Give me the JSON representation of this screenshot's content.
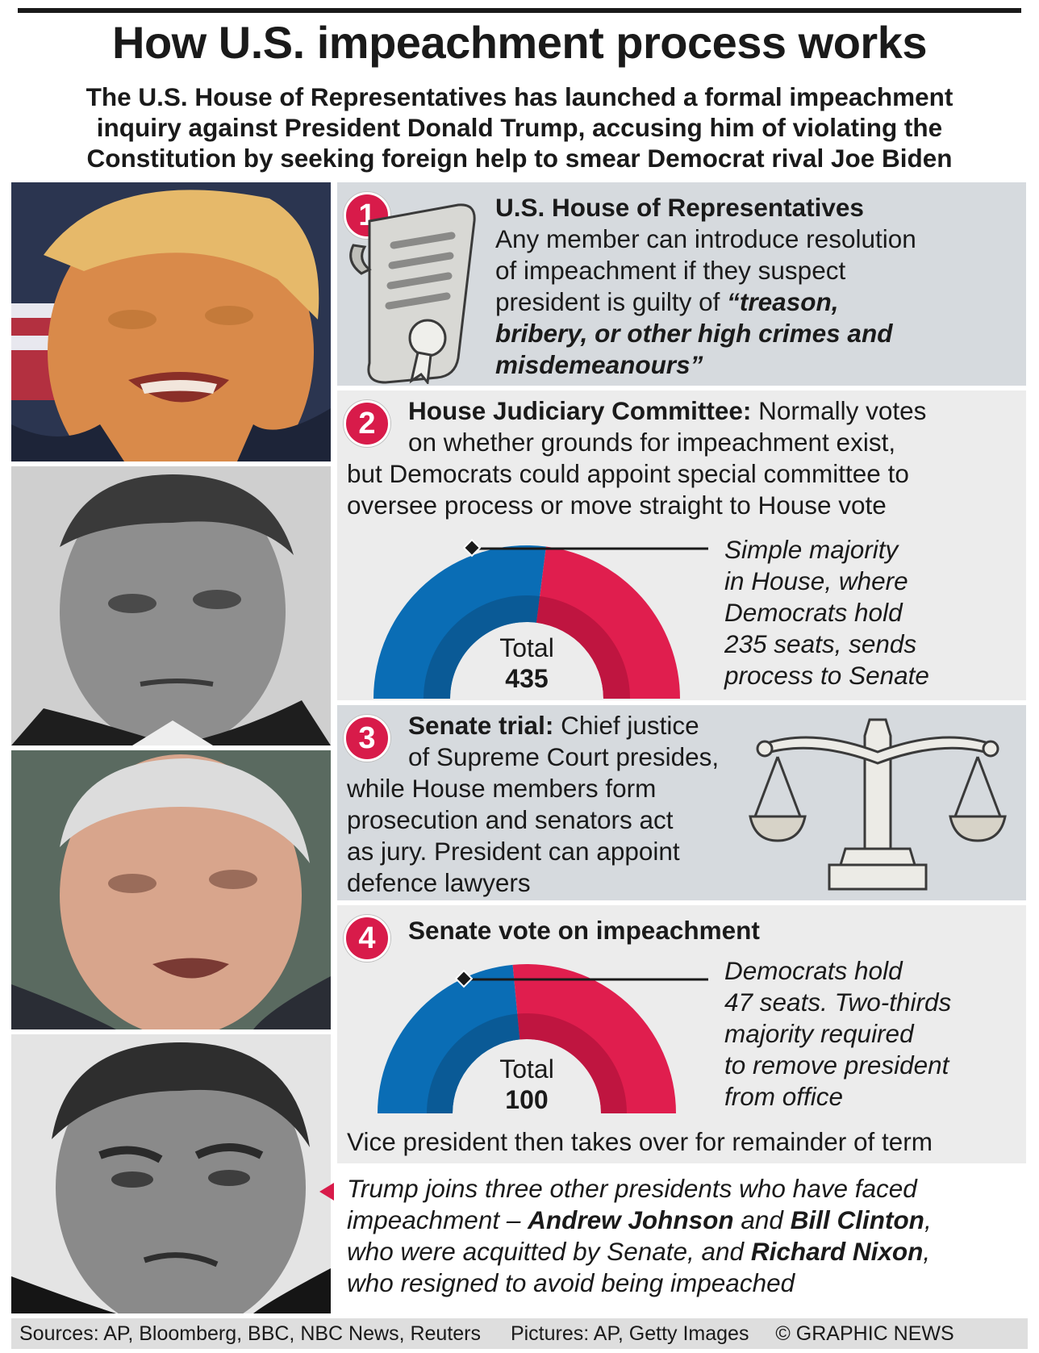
{
  "title": "How U.S. impeachment process works",
  "subtitle": {
    "line1": "The U.S. House of Representatives has launched a formal impeachment",
    "line2": "inquiry against President Donald Trump, accusing him of violating the",
    "line3": "Constitution by seeking foreign help to smear Democrat rival Joe Biden"
  },
  "photos": [
    "Donald Trump",
    "Andrew Johnson",
    "Bill Clinton",
    "Richard Nixon"
  ],
  "step1": {
    "number": "1",
    "heading": "U.S. House of Representatives",
    "line1": "Any member can introduce resolution",
    "line2": "of impeachment if they suspect",
    "line3": "president is guilty of ",
    "quote1": "“treason,",
    "quote2": "bribery, or other high crimes and",
    "quote3": "misdemeanours”",
    "icon": "scroll-icon"
  },
  "step2": {
    "number": "2",
    "heading": "House Judiciary Committee:",
    "line1_rest": " Normally votes",
    "line2": "on whether grounds for impeachment exist,",
    "line3": "but Democrats could appoint special committee to",
    "line4": "oversee process or move straight to House vote",
    "gauge": {
      "total_label": "Total",
      "total": 435,
      "democrats": 235
    },
    "note": [
      "Simple majority",
      "in House, where",
      "Democrats hold",
      "235 seats, sends",
      "process to Senate"
    ]
  },
  "step3": {
    "number": "3",
    "heading": "Senate trial:",
    "line1_rest": " Chief justice",
    "line2": "of Supreme Court presides,",
    "line3": "while House members form",
    "line4": "prosecution and senators act",
    "line5": "as jury. President can appoint",
    "line6": "defence lawyers",
    "icon": "scales-icon"
  },
  "step4": {
    "number": "4",
    "heading": "Senate vote on impeachment",
    "gauge": {
      "total_label": "Total",
      "total": 100,
      "democrats": 47
    },
    "note": [
      "Democrats hold",
      "47 seats. Two-thirds",
      "majority required",
      "to remove president",
      "from office"
    ],
    "after": "Vice president then takes over for remainder of term"
  },
  "history": {
    "l1": "Trump joins three other presidents who have faced",
    "l2a": "impeachment – ",
    "johnson": "Andrew Johnson",
    "and": " and ",
    "clinton": "Bill Clinton",
    "comma": ",",
    "l3a": "who were acquitted by Senate, and ",
    "nixon": "Richard Nixon",
    "l4": "who resigned to avoid being impeached"
  },
  "footer": {
    "sources": "Sources: AP, Bloomberg, BBC, NBC News, Reuters",
    "pictures": "Pictures: AP, Getty Images",
    "credit": "© GRAPHIC NEWS"
  },
  "colors": {
    "democrat": "#0a6db5",
    "democrat_inner": "#0a5a96",
    "republican": "#e01e4e",
    "republican_inner": "#bf1540",
    "badge": "#d81b4a"
  }
}
